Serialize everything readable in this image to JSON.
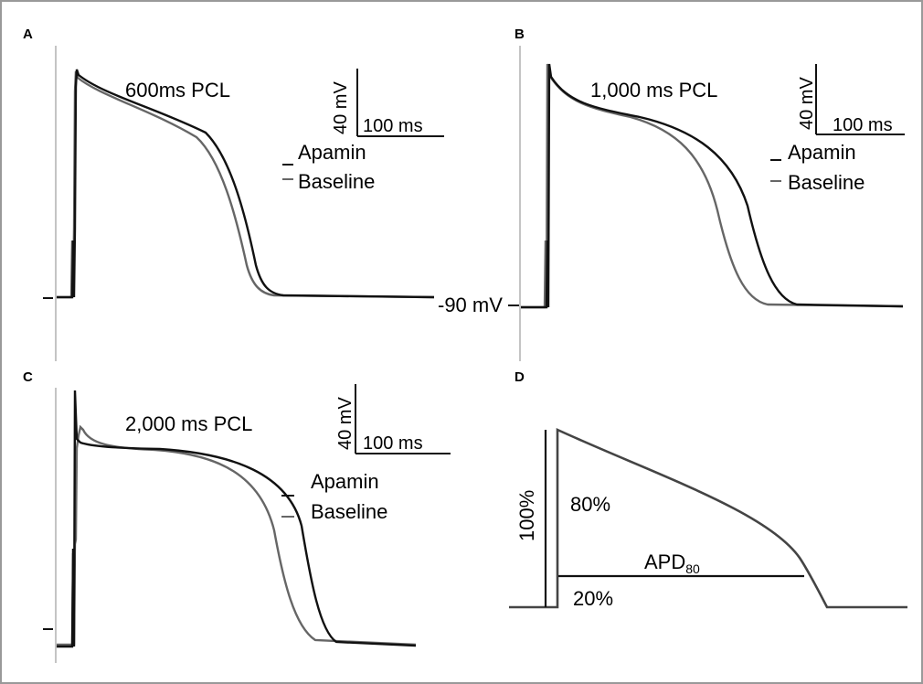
{
  "panels": [
    {
      "letter": "A",
      "title": "600ms PCL",
      "legend": [
        "Apamin",
        "Baseline"
      ],
      "scalebar": {
        "vertical": "40 mV",
        "horizontal": "100 ms"
      },
      "colors": {
        "Apamin": "#111111",
        "Baseline": "#666666"
      }
    },
    {
      "letter": "B",
      "title": "1,000 ms PCL",
      "legend": [
        "Apamin",
        "Baseline"
      ],
      "scalebar": {
        "vertical": "40 mV",
        "horizontal": "100 ms"
      },
      "colors": {
        "Apamin": "#111111",
        "Baseline": "#666666"
      }
    },
    {
      "letter": "C",
      "title": "2,000 ms PCL",
      "legend": [
        "Apamin",
        "Baseline"
      ],
      "scalebar": {
        "vertical": "40 mV",
        "horizontal": "100 ms"
      },
      "colors": {
        "Apamin": "#111111",
        "Baseline": "#666666"
      }
    },
    {
      "letter": "D",
      "labels": {
        "full": "100%",
        "upper": "80%",
        "lower": "20%",
        "apd": "APD",
        "apd_sub": "80"
      }
    }
  ],
  "resting_label": "-90 mV",
  "chart_data": [
    {
      "type": "line",
      "title": "600ms PCL",
      "series": [
        {
          "name": "Apamin"
        },
        {
          "name": "Baseline"
        }
      ]
    },
    {
      "type": "line",
      "title": "1,000 ms PCL",
      "series": [
        {
          "name": "Apamin"
        },
        {
          "name": "Baseline"
        }
      ]
    },
    {
      "type": "line",
      "title": "2,000 ms PCL",
      "series": [
        {
          "name": "Apamin"
        },
        {
          "name": "Baseline"
        }
      ]
    },
    {
      "type": "line"
    }
  ]
}
